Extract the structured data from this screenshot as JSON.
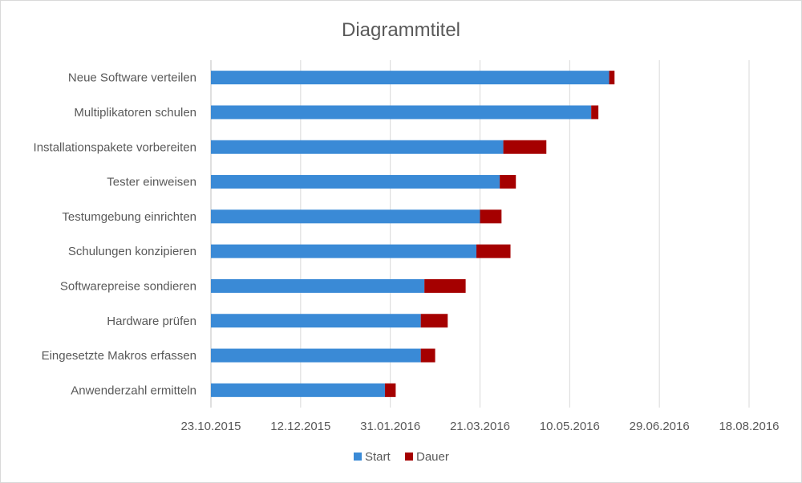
{
  "chart_data": {
    "type": "bar",
    "orientation": "horizontal",
    "stacked": true,
    "title": "Diagrammtitel",
    "categories": [
      "Anwenderzahl ermitteln",
      "Eingesetzte Makros erfassen",
      "Hardware prüfen",
      "Softwarepreise sondieren",
      "Schulungen konzipieren",
      "Testumgebung einrichten",
      "Tester einweisen",
      "Installationspakete vorbereiten",
      "Multiplikatoren schulen",
      "Neue Software verteilen"
    ],
    "series": [
      {
        "name": "Start",
        "color": "#3a8ad6",
        "values": [
          "2016-01-28",
          "2016-02-17",
          "2016-02-17",
          "2016-02-19",
          "2016-03-19",
          "2016-03-21",
          "2016-04-01",
          "2016-04-03",
          "2016-05-22",
          "2016-06-01"
        ]
      },
      {
        "name": "Dauer",
        "color": "#a50000",
        "values": [
          6,
          8,
          15,
          23,
          19,
          12,
          9,
          24,
          4,
          3
        ],
        "unit": "days"
      }
    ],
    "x_ticks": [
      "23.10.2015",
      "12.12.2015",
      "31.01.2016",
      "21.03.2016",
      "10.05.2016",
      "29.06.2016",
      "18.08.2016"
    ],
    "xlim": [
      "2015-10-23",
      "2016-08-18"
    ],
    "grid": "vertical",
    "legend_position": "bottom"
  }
}
